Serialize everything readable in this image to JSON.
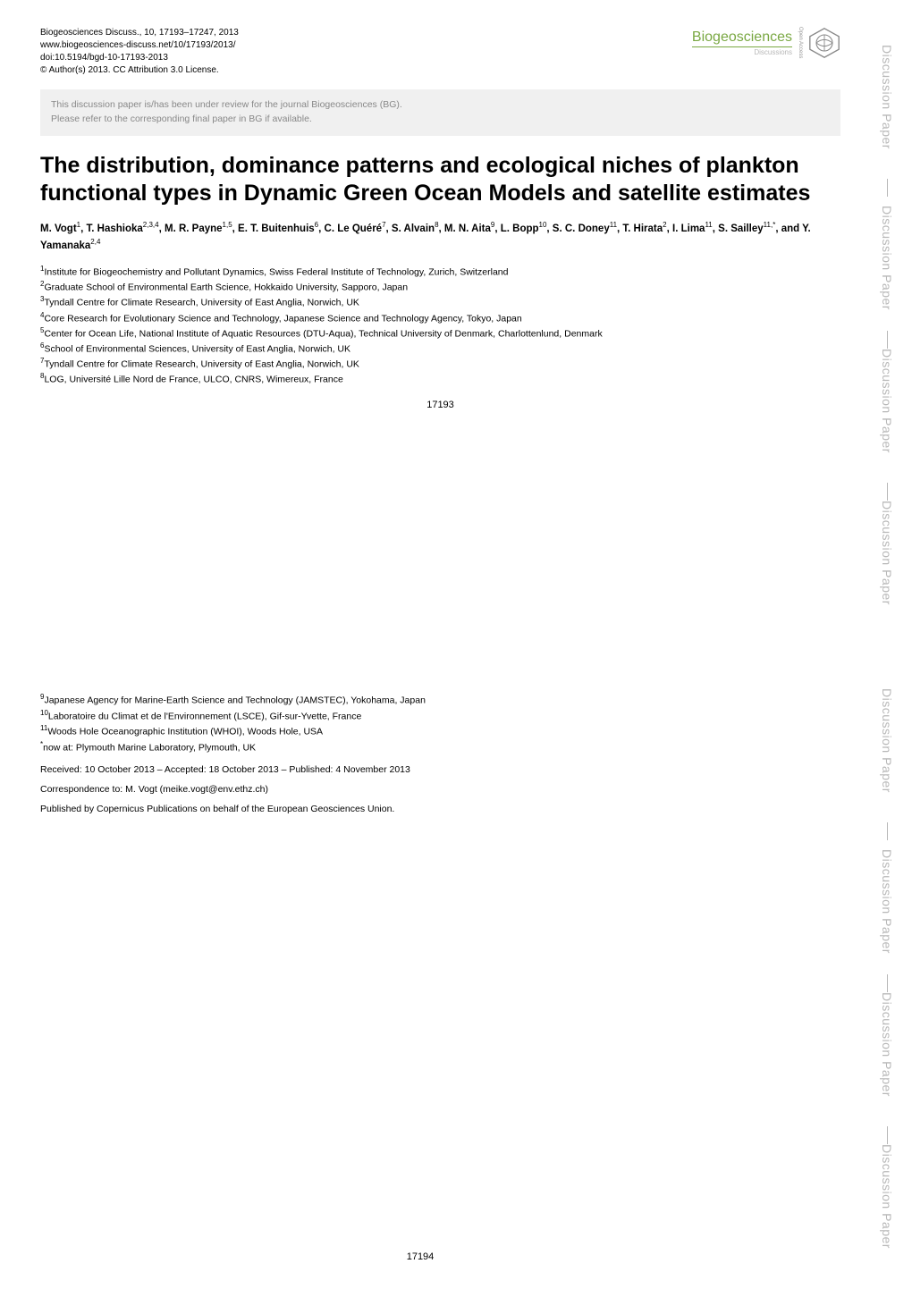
{
  "citation": {
    "line1": "Biogeosciences Discuss., 10, 17193–17247, 2013",
    "line2": "www.biogeosciences-discuss.net/10/17193/2013/",
    "line3": "doi:10.5194/bgd-10-17193-2013",
    "line4": "© Author(s) 2013. CC Attribution 3.0 License."
  },
  "journal_logo": {
    "name": "Biogeosciences",
    "sub": "Discussions",
    "open_access": "Open Access",
    "color": "#7aa843"
  },
  "notice": {
    "line1": "This discussion paper is/has been under review for the journal Biogeosciences (BG).",
    "line2": "Please refer to the corresponding final paper in BG if available."
  },
  "title": "The distribution, dominance patterns and ecological niches of plankton functional types in Dynamic Green Ocean Models and satellite estimates",
  "authors_html": "<b>M. Vogt</b><sup>1</sup><b>, T. Hashioka</b><sup>2,3,4</sup><b>, M. R. Payne</b><sup>1,5</sup><b>, E. T. Buitenhuis</b><sup>6</sup><b>, C. Le Quéré</b><sup>7</sup><b>, S. Alvain</b><sup>8</sup><b>, M. N. Aita</b><sup>9</sup><b>, L. Bopp</b><sup>10</sup><b>, S. C. Doney</b><sup>11</sup><b>, T. Hirata</b><sup>2</sup><b>, I. Lima</b><sup>11</sup><b>, S. Sailley</b><sup>11,*</sup><b>, and Y. Yamanaka</b><sup>2,4</sup>",
  "affiliations_p1": [
    "<sup>1</sup>Institute for Biogeochemistry and Pollutant Dynamics, Swiss Federal Institute of Technology, Zurich, Switzerland",
    "<sup>2</sup>Graduate School of Environmental Earth Science, Hokkaido University, Sapporo, Japan",
    "<sup>3</sup>Tyndall Centre for Climate Research, University of East Anglia, Norwich, UK",
    "<sup>4</sup>Core Research for Evolutionary Science and Technology, Japanese Science and Technology Agency, Tokyo, Japan",
    "<sup>5</sup>Center for Ocean Life, National Institute of Aquatic Resources (DTU-Aqua), Technical University of Denmark, Charlottenlund, Denmark",
    "<sup>6</sup>School of Environmental Sciences, University of East Anglia, Norwich, UK",
    "<sup>7</sup>Tyndall Centre for Climate Research, University of East Anglia, Norwich, UK",
    "<sup>8</sup>LOG, Université Lille Nord de France, ULCO, CNRS, Wimereux, France"
  ],
  "page_num_1": "17193",
  "affiliations_p2": [
    "<sup>9</sup>Japanese Agency for Marine-Earth Science and Technology (JAMSTEC), Yokohama, Japan",
    "<sup>10</sup>Laboratoire du Climat et de l'Environnement (LSCE), Gif-sur-Yvette, France",
    "<sup>11</sup>Woods Hole Oceanographic Institution (WHOI), Woods Hole, USA",
    "<sup>*</sup>now at: Plymouth Marine Laboratory, Plymouth, UK"
  ],
  "received": "Received: 10 October 2013 – Accepted: 18 October 2013 – Published: 4 November 2013",
  "correspondence": "Correspondence to: M. Vogt (meike.vogt@env.ethz.ch)",
  "published_by": "Published by Copernicus Publications on behalf of the European Geosciences Union.",
  "page_num_2": "17194",
  "side_labels": [
    "Discussion Paper",
    "Discussion Paper",
    "Discussion Paper",
    "Discussion Paper"
  ]
}
